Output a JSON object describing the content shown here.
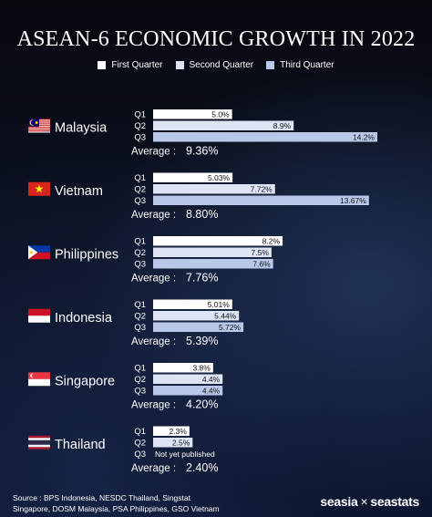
{
  "title": "ASEAN-6 ECONOMIC GROWTH IN 2022",
  "legend": [
    {
      "label": "First Quarter",
      "color": "#ffffff"
    },
    {
      "label": "Second Quarter",
      "color": "#dde4f3"
    },
    {
      "label": "Third Quarter",
      "color": "#b9c7e8"
    }
  ],
  "chart_data": {
    "type": "bar",
    "orientation": "horizontal",
    "quarters": [
      "Q1",
      "Q2",
      "Q3"
    ],
    "average_label": "Average :",
    "countries": [
      {
        "name": "Malaysia",
        "flag": "malaysia-flag-icon",
        "values": [
          5.0,
          8.9,
          14.2
        ],
        "labels": [
          "5.0%",
          "8.9%",
          "14.2%"
        ],
        "average": "9.36%"
      },
      {
        "name": "Vietnam",
        "flag": "vietnam-flag-icon",
        "values": [
          5.03,
          7.72,
          13.67
        ],
        "labels": [
          "5.03%",
          "7.72%",
          "13.67%"
        ],
        "average": "8.80%"
      },
      {
        "name": "Philippines",
        "flag": "philippines-flag-icon",
        "values": [
          8.2,
          7.5,
          7.6
        ],
        "labels": [
          "8.2%",
          "7.5%",
          "7.6%"
        ],
        "average": "7.76%"
      },
      {
        "name": "Indonesia",
        "flag": "indonesia-flag-icon",
        "values": [
          5.01,
          5.44,
          5.72
        ],
        "labels": [
          "5.01%",
          "5.44%",
          "5.72%"
        ],
        "average": "5.39%"
      },
      {
        "name": "Singapore",
        "flag": "singapore-flag-icon",
        "values": [
          3.8,
          4.4,
          4.4
        ],
        "labels": [
          "3.8%",
          "4.4%",
          "4.4%"
        ],
        "average": "4.20%"
      },
      {
        "name": "Thailand",
        "flag": "thailand-flag-icon",
        "values": [
          2.3,
          2.5,
          null
        ],
        "labels": [
          "2.3%",
          "2.5%",
          "Not yet published"
        ],
        "average": "2.40%"
      }
    ],
    "xmax": 14.2
  },
  "footer": {
    "source_line1": "Source : BPS Indonesia, NESDC Thailand, Singstat",
    "source_line2": "Singapore, DOSM Malaysia, PSA Philippines, GSO Vietnam",
    "brand_left": "seasia",
    "brand_sep": "×",
    "brand_right": "seastats"
  }
}
